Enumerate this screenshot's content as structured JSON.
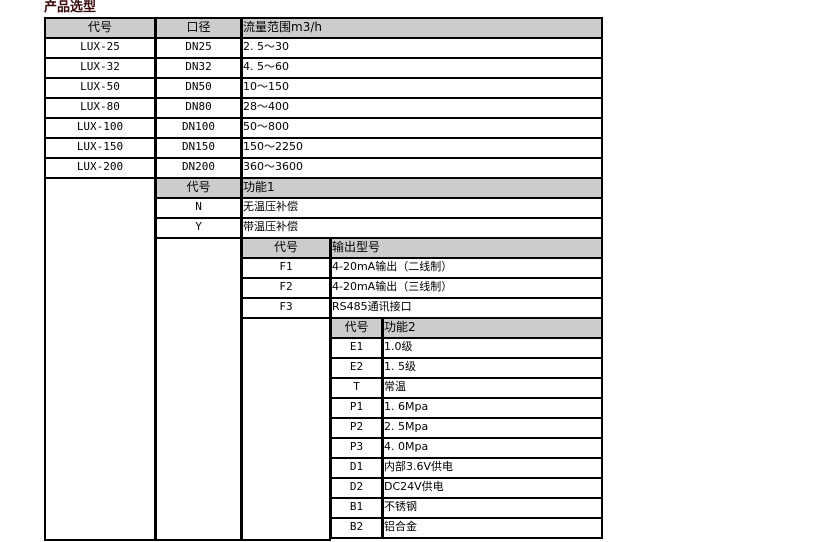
{
  "title": "产品选型",
  "header_bg": "#cccccc",
  "sections": [
    {
      "col": 0,
      "headers": [
        "代号",
        "口径",
        "流量范围m3/h"
      ],
      "rows": [
        [
          "LUX-25",
          "DN25",
          "2. 5～30"
        ],
        [
          "LUX-32",
          "DN32",
          "4. 5～60"
        ],
        [
          "LUX-50",
          "DN50",
          "10～150"
        ],
        [
          "LUX-80",
          "DN80",
          "28～400"
        ],
        [
          "LUX-100",
          "DN100",
          "50～800"
        ],
        [
          "LUX-150",
          "DN150",
          "150～2250"
        ],
        [
          "LUX-200",
          "DN200",
          "360～3600"
        ]
      ]
    },
    {
      "col": 1,
      "headers": [
        "代号",
        "功能1"
      ],
      "rows": [
        [
          "N",
          "无温压补偿"
        ],
        [
          "Y",
          "带温压补偿"
        ]
      ]
    },
    {
      "col": 2,
      "headers": [
        "代号",
        "输出型号"
      ],
      "rows": [
        [
          "F1",
          "4-20mA输出（二线制）"
        ],
        [
          "F2",
          "4-20mA输出（三线制）"
        ],
        [
          "F3",
          "RS485通讯接口"
        ]
      ]
    },
    {
      "col": 3,
      "headers": [
        "代号",
        "功能2"
      ],
      "rows": [
        [
          "E1",
          "1.0级"
        ],
        [
          "E2",
          "1. 5级"
        ],
        [
          "T",
          "常温"
        ],
        [
          "P1",
          "1. 6Mpa"
        ],
        [
          "P2",
          "2. 5Mpa"
        ],
        [
          "P3",
          "4. 0Mpa"
        ],
        [
          "D1",
          "内部3.6V供电"
        ],
        [
          "D2",
          "DC24V供电"
        ],
        [
          "B1",
          "不锈钢"
        ],
        [
          "B2",
          "铝合金"
        ]
      ]
    }
  ]
}
